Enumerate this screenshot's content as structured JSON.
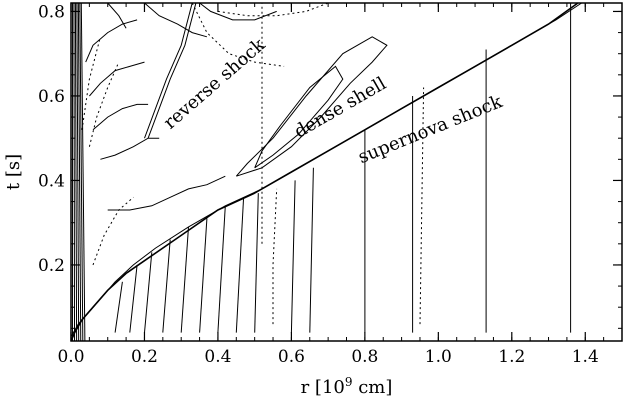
{
  "chart_data": {
    "type": "line",
    "title": "",
    "xlabel": "r [10",
    "xlabel_sup": "9",
    "xlabel_unit": " cm]",
    "ylabel": "t [s]",
    "xlim": [
      0.0,
      1.5
    ],
    "ylim": [
      0.02,
      0.82
    ],
    "xticks": [
      0.0,
      0.2,
      0.4,
      0.6,
      0.8,
      1.0,
      1.2,
      1.4
    ],
    "xtick_labels": [
      "0.0",
      "0.2",
      "0.4",
      "0.6",
      "0.8",
      "1.0",
      "1.2",
      "1.4"
    ],
    "yticks": [
      0.2,
      0.4,
      0.6,
      0.8
    ],
    "ytick_labels": [
      "0.2",
      "0.4",
      "0.6",
      "0.8"
    ],
    "grid": false,
    "annotations": [
      {
        "text": "reverse shock",
        "x": 0.27,
        "y": 0.52,
        "angle": -41
      },
      {
        "text": "dense shell",
        "x": 0.62,
        "y": 0.5,
        "angle": -30
      },
      {
        "text": "supernova shock",
        "x": 0.79,
        "y": 0.44,
        "angle": -22
      }
    ],
    "series": [
      {
        "style": "solid",
        "width": 1.6,
        "x": [
          0.0,
          0.01,
          0.03,
          0.06,
          0.1,
          0.15,
          0.2,
          0.3,
          0.4,
          0.5,
          0.6,
          0.7,
          0.8,
          0.9,
          1.0,
          1.1,
          1.2,
          1.3,
          1.38
        ],
        "y": [
          0.02,
          0.04,
          0.07,
          0.1,
          0.14,
          0.18,
          0.21,
          0.27,
          0.33,
          0.37,
          0.42,
          0.47,
          0.52,
          0.57,
          0.62,
          0.67,
          0.72,
          0.77,
          0.82
        ]
      },
      {
        "style": "solid",
        "width": 1.0,
        "x": [
          0.0,
          0.02,
          0.05,
          0.08,
          0.12,
          0.17,
          0.23,
          0.32,
          0.42,
          0.52,
          0.62,
          0.72,
          0.82,
          0.92,
          1.02,
          1.12,
          1.22,
          1.32,
          1.39
        ],
        "y": [
          0.03,
          0.06,
          0.09,
          0.12,
          0.16,
          0.2,
          0.24,
          0.29,
          0.34,
          0.38,
          0.43,
          0.48,
          0.53,
          0.58,
          0.63,
          0.68,
          0.73,
          0.78,
          0.82
        ]
      },
      {
        "style": "solid",
        "width": 1.0,
        "x": [
          0.2,
          0.23,
          0.26,
          0.3,
          0.33
        ],
        "y": [
          0.5,
          0.57,
          0.64,
          0.72,
          0.82
        ]
      },
      {
        "style": "solid",
        "width": 1.0,
        "x": [
          0.21,
          0.24,
          0.27,
          0.31,
          0.34
        ],
        "y": [
          0.5,
          0.57,
          0.64,
          0.72,
          0.82
        ]
      },
      {
        "style": "solid",
        "width": 1.0,
        "x": [
          0.5,
          0.55,
          0.62,
          0.7,
          0.74,
          0.72,
          0.65,
          0.57,
          0.52,
          0.5
        ],
        "y": [
          0.43,
          0.46,
          0.51,
          0.59,
          0.64,
          0.67,
          0.62,
          0.53,
          0.47,
          0.43
        ]
      },
      {
        "style": "solid",
        "width": 1.0,
        "x": [
          0.45,
          0.52,
          0.6,
          0.68,
          0.76,
          0.82,
          0.86,
          0.82,
          0.74,
          0.64,
          0.55,
          0.48,
          0.45
        ],
        "y": [
          0.41,
          0.43,
          0.48,
          0.55,
          0.63,
          0.68,
          0.72,
          0.74,
          0.7,
          0.6,
          0.5,
          0.44,
          0.41
        ]
      },
      {
        "style": "solid",
        "width": 1.0,
        "x": [
          0.1,
          0.16,
          0.22,
          0.27,
          0.32,
          0.37,
          0.42
        ],
        "y": [
          0.33,
          0.33,
          0.34,
          0.36,
          0.38,
          0.39,
          0.41
        ]
      },
      {
        "style": "solid",
        "width": 1.0,
        "x": [
          0.08,
          0.12,
          0.17,
          0.21,
          0.24
        ],
        "y": [
          0.45,
          0.46,
          0.48,
          0.5,
          0.5
        ]
      },
      {
        "style": "solid",
        "width": 1.0,
        "x": [
          0.06,
          0.1,
          0.14,
          0.18,
          0.21
        ],
        "y": [
          0.52,
          0.55,
          0.57,
          0.58,
          0.58
        ]
      },
      {
        "style": "solid",
        "width": 1.0,
        "x": [
          0.05,
          0.08,
          0.12,
          0.16,
          0.2
        ],
        "y": [
          0.6,
          0.63,
          0.66,
          0.67,
          0.68
        ]
      },
      {
        "style": "solid",
        "width": 1.0,
        "x": [
          0.04,
          0.06,
          0.1,
          0.14,
          0.18
        ],
        "y": [
          0.68,
          0.72,
          0.75,
          0.77,
          0.78
        ]
      },
      {
        "style": "solid",
        "width": 1.0,
        "x": [
          0.35,
          0.38,
          0.44,
          0.5,
          0.56
        ],
        "y": [
          0.82,
          0.8,
          0.78,
          0.78,
          0.8
        ]
      },
      {
        "style": "solid",
        "width": 1.0,
        "x": [
          0.2,
          0.24,
          0.29,
          0.33,
          0.37
        ],
        "y": [
          0.82,
          0.79,
          0.77,
          0.75,
          0.74
        ]
      },
      {
        "style": "solid",
        "width": 1.0,
        "x": [
          0.1,
          0.13,
          0.15
        ],
        "y": [
          0.82,
          0.79,
          0.76
        ]
      },
      {
        "style": "dotted",
        "width": 1.0,
        "x": [
          0.33,
          0.37,
          0.43,
          0.5,
          0.58
        ],
        "y": [
          0.82,
          0.75,
          0.7,
          0.68,
          0.67
        ]
      },
      {
        "style": "dotted",
        "width": 1.0,
        "x": [
          0.4,
          0.48,
          0.56,
          0.64,
          0.7
        ],
        "y": [
          0.8,
          0.79,
          0.79,
          0.8,
          0.82
        ]
      },
      {
        "style": "dotted",
        "width": 1.0,
        "x": [
          0.06,
          0.09,
          0.13,
          0.17
        ],
        "y": [
          0.2,
          0.27,
          0.33,
          0.36
        ]
      },
      {
        "style": "dotted",
        "width": 1.0,
        "x": [
          0.05,
          0.07,
          0.1,
          0.13
        ],
        "y": [
          0.48,
          0.55,
          0.62,
          0.68
        ]
      },
      {
        "style": "dotted",
        "width": 1.0,
        "x": [
          0.03,
          0.05,
          0.08
        ],
        "y": [
          0.52,
          0.64,
          0.74
        ]
      },
      {
        "style": "dotted",
        "width": 1.0,
        "x": [
          0.52,
          0.52
        ],
        "y": [
          0.25,
          0.82
        ]
      },
      {
        "style": "dotted",
        "width": 1.0,
        "x": [
          0.55,
          0.55,
          0.56
        ],
        "y": [
          0.06,
          0.2,
          0.38
        ]
      },
      {
        "style": "dotted",
        "width": 1.0,
        "x": [
          0.95,
          0.96
        ],
        "y": [
          0.06,
          0.62
        ]
      },
      {
        "style": "solid",
        "width": 1.0,
        "x": [
          0.12,
          0.14
        ],
        "y": [
          0.04,
          0.16
        ]
      },
      {
        "style": "solid",
        "width": 1.0,
        "x": [
          0.16,
          0.18
        ],
        "y": [
          0.04,
          0.2
        ]
      },
      {
        "style": "solid",
        "width": 1.0,
        "x": [
          0.2,
          0.22
        ],
        "y": [
          0.04,
          0.23
        ]
      },
      {
        "style": "solid",
        "width": 1.0,
        "x": [
          0.25,
          0.27
        ],
        "y": [
          0.04,
          0.26
        ]
      },
      {
        "style": "solid",
        "width": 1.0,
        "x": [
          0.3,
          0.32
        ],
        "y": [
          0.04,
          0.29
        ]
      },
      {
        "style": "solid",
        "width": 1.0,
        "x": [
          0.35,
          0.37
        ],
        "y": [
          0.04,
          0.31
        ]
      },
      {
        "style": "solid",
        "width": 1.0,
        "x": [
          0.4,
          0.42
        ],
        "y": [
          0.04,
          0.34
        ]
      },
      {
        "style": "solid",
        "width": 1.0,
        "x": [
          0.45,
          0.47
        ],
        "y": [
          0.04,
          0.36
        ]
      },
      {
        "style": "solid",
        "width": 1.0,
        "x": [
          0.5,
          0.51
        ],
        "y": [
          0.04,
          0.37
        ]
      },
      {
        "style": "solid",
        "width": 1.0,
        "x": [
          0.6,
          0.61
        ],
        "y": [
          0.04,
          0.4
        ]
      },
      {
        "style": "solid",
        "width": 1.0,
        "x": [
          0.65,
          0.66
        ],
        "y": [
          0.04,
          0.43
        ]
      },
      {
        "style": "solid",
        "width": 1.0,
        "x": [
          0.8,
          0.8
        ],
        "y": [
          0.04,
          0.52
        ]
      },
      {
        "style": "solid",
        "width": 1.0,
        "x": [
          0.93,
          0.93
        ],
        "y": [
          0.04,
          0.6
        ]
      },
      {
        "style": "solid",
        "width": 1.0,
        "x": [
          1.13,
          1.13
        ],
        "y": [
          0.04,
          0.71
        ]
      },
      {
        "style": "solid",
        "width": 1.0,
        "x": [
          1.36,
          1.36
        ],
        "y": [
          0.04,
          0.82
        ]
      }
    ]
  }
}
